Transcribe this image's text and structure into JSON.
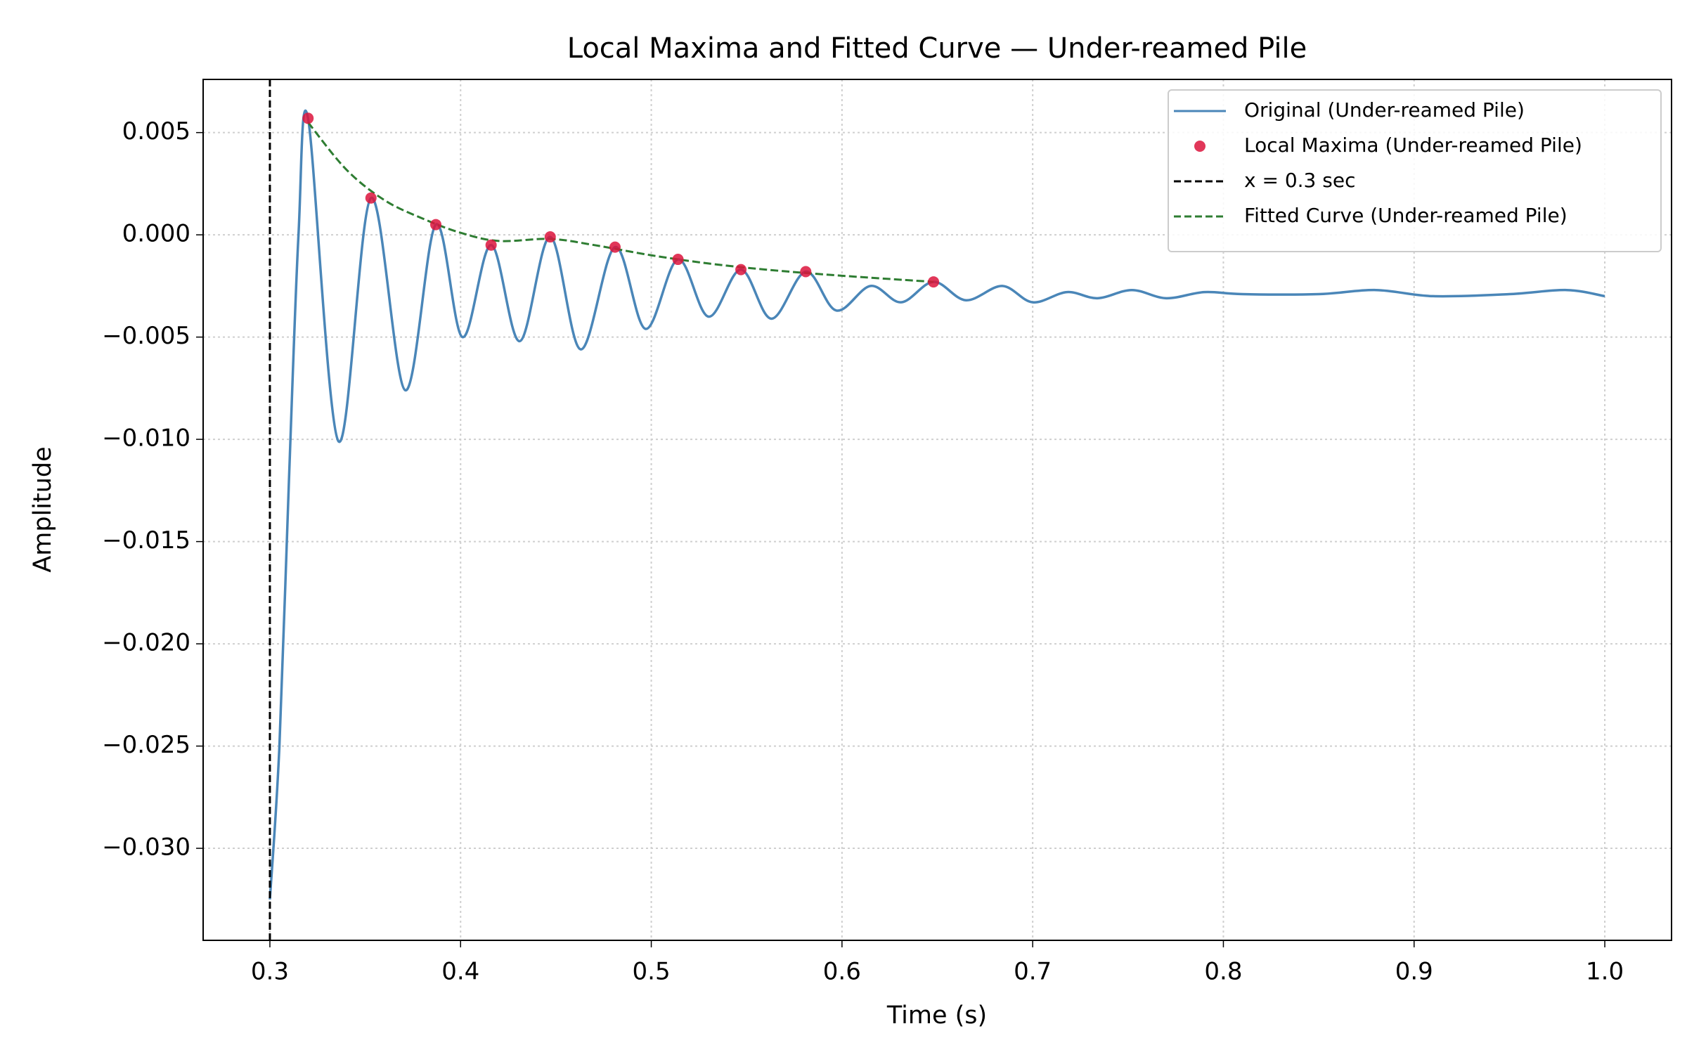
{
  "chart_data": {
    "type": "line",
    "title": "Local Maxima and Fitted Curve — Under-reamed Pile",
    "x_label": "Time (s)",
    "y_label": "Amplitude",
    "xlim": [
      0.265,
      1.035
    ],
    "ylim": [
      -0.0345,
      0.0076
    ],
    "xticks": [
      0.3,
      0.4,
      0.5,
      0.6,
      0.7,
      0.8,
      0.9,
      {
        "value": 1.0,
        "label": "1.0"
      }
    ],
    "yticks": [
      {
        "value": -0.03,
        "label": "−0.030"
      },
      {
        "value": -0.025,
        "label": "−0.025"
      },
      {
        "value": -0.02,
        "label": "−0.020"
      },
      {
        "value": -0.015,
        "label": "−0.015"
      },
      {
        "value": -0.01,
        "label": "−0.010"
      },
      {
        "value": -0.005,
        "label": "−0.005"
      },
      {
        "value": 0,
        "label": "0.000"
      },
      0.005
    ],
    "grid": true,
    "legend": "upper right",
    "series": [
      {
        "name": "Original (Under-reamed Pile)",
        "color": "#4a86b8",
        "style": "line",
        "x": [
          0.3,
          0.305,
          0.31,
          0.315,
          0.32,
          0.336,
          0.353,
          0.371,
          0.387,
          0.401,
          0.416,
          0.431,
          0.447,
          0.463,
          0.481,
          0.497,
          0.514,
          0.53,
          0.547,
          0.563,
          0.581,
          0.597,
          0.615,
          0.631,
          0.648,
          0.665,
          0.684,
          0.7,
          0.718,
          0.734,
          0.752,
          0.77,
          0.79,
          0.81,
          0.85,
          0.88,
          0.91,
          0.95,
          0.98,
          1.0
        ],
        "values": [
          -0.0325,
          -0.025,
          -0.012,
          0.0,
          0.0057,
          -0.0101,
          0.0018,
          -0.0076,
          0.0005,
          -0.005,
          -0.0005,
          -0.0052,
          -0.0001,
          -0.0056,
          -0.0006,
          -0.0046,
          -0.0012,
          -0.004,
          -0.0017,
          -0.0041,
          -0.0018,
          -0.0037,
          -0.0025,
          -0.0033,
          -0.0023,
          -0.0032,
          -0.0025,
          -0.0033,
          -0.0028,
          -0.0031,
          -0.0027,
          -0.0031,
          -0.0028,
          -0.0029,
          -0.0029,
          -0.0027,
          -0.003,
          -0.0029,
          -0.0027,
          -0.003
        ]
      },
      {
        "name": "Local Maxima (Under-reamed Pile)",
        "color": "#dc143c",
        "style": "markers",
        "x": [
          0.32,
          0.353,
          0.387,
          0.416,
          0.447,
          0.481,
          0.514,
          0.547,
          0.581,
          0.648
        ],
        "values": [
          0.0057,
          0.0018,
          0.0005,
          -0.0005,
          -0.0001,
          -0.0006,
          -0.0012,
          -0.0017,
          -0.0018,
          -0.0023
        ]
      },
      {
        "name": "Fitted Curve (Under-reamed Pile)",
        "color": "#2e7d32",
        "style": "dashed",
        "x": [
          0.32,
          0.34,
          0.36,
          0.38,
          0.4,
          0.42,
          0.447,
          0.47,
          0.5,
          0.53,
          0.56,
          0.6,
          0.648
        ],
        "values": [
          0.0055,
          0.0032,
          0.0017,
          0.0008,
          0.0001,
          -0.0003,
          -0.0002,
          -0.0005,
          -0.001,
          -0.0014,
          -0.0017,
          -0.002,
          -0.0023
        ]
      }
    ],
    "vlines": [
      {
        "x": 0.3,
        "name": "x = 0.3 sec",
        "color": "#000000"
      }
    ]
  }
}
